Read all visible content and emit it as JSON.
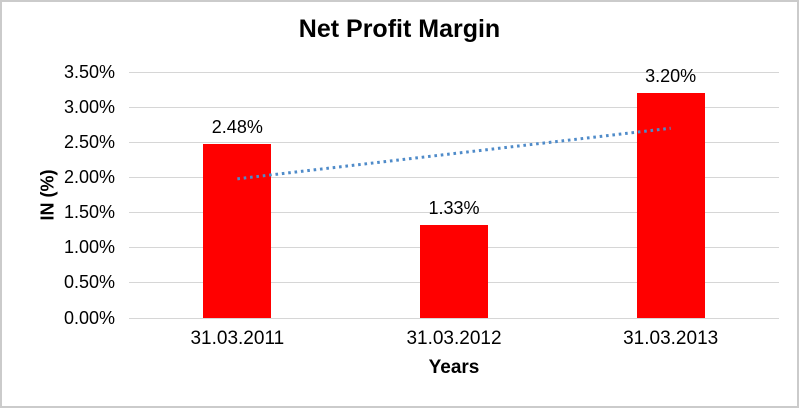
{
  "chart_data": {
    "type": "bar",
    "title": "Net Profit Margin",
    "xlabel": "Years",
    "ylabel": "IN (%)",
    "categories": [
      "31.03.2011",
      "31.03.2012",
      "31.03.2013"
    ],
    "values": [
      2.48,
      1.33,
      3.2
    ],
    "data_labels": [
      "2.48%",
      "1.33%",
      "3.20%"
    ],
    "ylim": [
      0,
      3.5
    ],
    "ytick_step": 0.5,
    "ytick_labels": [
      "0.00%",
      "0.50%",
      "1.00%",
      "1.50%",
      "2.00%",
      "2.50%",
      "3.00%",
      "3.50%"
    ],
    "grid": true,
    "legend": false,
    "bar_color": "#ff0000",
    "gridline_color": "#d6d6d6",
    "background": "#ffffff",
    "trendline": {
      "type": "linear",
      "style": "dotted",
      "color": "#4f8bc9",
      "start_value": 1.98,
      "end_value": 2.7
    }
  }
}
